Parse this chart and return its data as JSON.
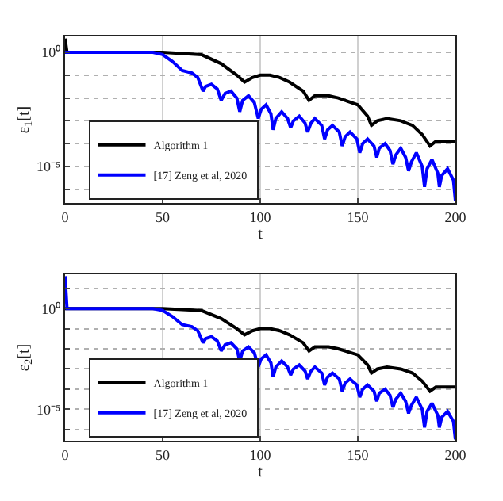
{
  "chart_data": [
    {
      "type": "line",
      "xlabel": "t",
      "ylabel": "ε$_{1}$[t]",
      "log": "y",
      "grid": true,
      "legend": "bottom left",
      "line_style": "solid",
      "marker": "none",
      "xlim": [
        0,
        200
      ],
      "xticks": [
        0,
        50,
        100,
        150,
        200
      ],
      "ylim": [
        2.5e-07,
        5
      ],
      "yticks": [
        {
          "value": 1e-06,
          "label": null
        },
        {
          "value": 1e-05,
          "label": "10⁻⁵"
        },
        {
          "value": 0.0001,
          "label": null
        },
        {
          "value": 0.001,
          "label": null
        },
        {
          "value": 0.01,
          "label": null
        },
        {
          "value": 0.1,
          "label": null
        },
        {
          "value": 1,
          "label": "10⁰"
        }
      ],
      "series": [
        {
          "name": "Algorithm 1",
          "color": "#000000",
          "x": [
            0,
            1,
            50,
            70,
            80,
            88,
            92,
            96,
            100,
            105,
            110,
            115,
            122,
            125,
            128,
            135,
            140,
            150,
            155,
            157,
            160,
            165,
            172,
            178,
            183,
            187,
            190,
            200
          ],
          "values": [
            4,
            1,
            1,
            0.79,
            0.32,
            0.1,
            0.05,
            0.079,
            0.1,
            0.1,
            0.079,
            0.05,
            0.02,
            0.0079,
            0.0126,
            0.0126,
            0.01,
            0.005,
            0.0016,
            0.00063,
            0.001,
            0.00126,
            0.001,
            0.00063,
            0.00025,
            7.9e-05,
            0.000126,
            0.000126
          ]
        },
        {
          "name": "[17] Zeng et al, 2020",
          "color": "#0000ff",
          "x": [
            0,
            45,
            50,
            55,
            60,
            65,
            68,
            70.7,
            72,
            75,
            78,
            80,
            82,
            85,
            88,
            89.5,
            91,
            94,
            97,
            99,
            100.5,
            103,
            105.5,
            106.6,
            108,
            111,
            114,
            115.6,
            117,
            120,
            123,
            124.3,
            126,
            128,
            131.5,
            133,
            134.5,
            137,
            140.5,
            142,
            143.5,
            146,
            149.5,
            151,
            152.5,
            155,
            158.3,
            159.7,
            161,
            164,
            166.5,
            168,
            169.5,
            172,
            174.5,
            176,
            177.5,
            180,
            183,
            184.2,
            185.5,
            188,
            191,
            191.8,
            193,
            196,
            199,
            200
          ],
          "values": [
            1,
            1,
            0.8,
            0.4,
            0.16,
            0.126,
            0.079,
            0.02,
            0.032,
            0.04,
            0.025,
            0.0079,
            0.016,
            0.02,
            0.01,
            0.0025,
            0.0079,
            0.0126,
            0.0063,
            0.00126,
            0.0032,
            0.005,
            0.002,
            0.0004,
            0.00126,
            0.0025,
            0.00126,
            0.0005,
            0.001,
            0.0016,
            0.00079,
            0.00032,
            0.00079,
            0.00126,
            0.00063,
            0.00016,
            0.0004,
            0.00063,
            0.00032,
            7.9e-05,
            0.0002,
            0.00032,
            0.00016,
            4e-05,
            0.0001,
            0.00016,
            7.9e-05,
            2.5e-05,
            6.3e-05,
            0.0001,
            5e-05,
            1.26e-05,
            3.2e-05,
            6.3e-05,
            2.5e-05,
            6.3e-06,
            1.6e-05,
            4e-05,
            1e-05,
            1.26e-06,
            7.9e-06,
            2e-05,
            5e-06,
            1.26e-06,
            4e-06,
            7.9e-06,
            2.5e-06,
            3.2e-07
          ]
        }
      ]
    },
    {
      "type": "line",
      "xlabel": "t",
      "ylabel": "ε$_{2}$[t]",
      "log": "y",
      "grid": true,
      "legend": "bottom left",
      "line_style": "solid",
      "marker": "none",
      "xlim": [
        0,
        200
      ],
      "xticks": [
        0,
        50,
        100,
        150,
        200
      ],
      "ylim": [
        2.75e-07,
        50
      ],
      "yticks": [
        {
          "value": 1e-06,
          "label": null
        },
        {
          "value": 1e-05,
          "label": "10⁻⁵"
        },
        {
          "value": 0.0001,
          "label": null
        },
        {
          "value": 0.001,
          "label": null
        },
        {
          "value": 0.01,
          "label": null
        },
        {
          "value": 0.1,
          "label": null
        },
        {
          "value": 1,
          "label": "10⁰"
        },
        {
          "value": 10,
          "label": null
        }
      ],
      "series": [
        {
          "name": "Algorithm 1",
          "color": "#000000",
          "x": [
            0,
            1,
            50,
            70,
            80,
            88,
            92,
            96,
            100,
            105,
            110,
            115,
            122,
            125,
            128,
            135,
            140,
            150,
            155,
            157,
            160,
            165,
            172,
            178,
            183,
            187,
            190,
            200
          ],
          "values": [
            1,
            1,
            1,
            0.79,
            0.32,
            0.1,
            0.05,
            0.079,
            0.1,
            0.1,
            0.079,
            0.05,
            0.02,
            0.0079,
            0.0126,
            0.0126,
            0.01,
            0.005,
            0.0016,
            0.00063,
            0.001,
            0.00126,
            0.001,
            0.00063,
            0.00025,
            7.9e-05,
            0.000126,
            0.000126
          ]
        },
        {
          "name": "[17] Zeng et al, 2020",
          "color": "#0000ff",
          "x": [
            0,
            1,
            45,
            50,
            55,
            60,
            65,
            68,
            70.7,
            72,
            75,
            78,
            80,
            82,
            85,
            88,
            89.5,
            91,
            94,
            97,
            99,
            100.5,
            103,
            105.5,
            106.6,
            108,
            111,
            114,
            115.6,
            117,
            120,
            123,
            124.3,
            126,
            128,
            131.5,
            133,
            134.5,
            137,
            140.5,
            142,
            143.5,
            146,
            149.5,
            151,
            152.5,
            155,
            158.3,
            159.7,
            161,
            164,
            166.5,
            168,
            169.5,
            172,
            174.5,
            176,
            177.5,
            180,
            183,
            184.2,
            185.5,
            188,
            191,
            191.8,
            193,
            196,
            199,
            200
          ],
          "values": [
            40,
            1,
            1,
            0.8,
            0.4,
            0.16,
            0.126,
            0.079,
            0.02,
            0.032,
            0.04,
            0.025,
            0.0079,
            0.016,
            0.02,
            0.01,
            0.0025,
            0.0079,
            0.0126,
            0.0063,
            0.00126,
            0.0032,
            0.005,
            0.002,
            0.0004,
            0.00126,
            0.0025,
            0.00126,
            0.0005,
            0.001,
            0.0016,
            0.00079,
            0.00032,
            0.00079,
            0.00126,
            0.00063,
            0.00016,
            0.0004,
            0.00063,
            0.00032,
            7.9e-05,
            0.0002,
            0.00032,
            0.00016,
            4e-05,
            0.0001,
            0.00016,
            7.9e-05,
            2.5e-05,
            6.3e-05,
            0.0001,
            5e-05,
            1.26e-05,
            3.2e-05,
            6.3e-05,
            2.5e-05,
            6.3e-06,
            1.6e-05,
            4e-05,
            1e-05,
            1.26e-06,
            7.9e-06,
            2e-05,
            5e-06,
            1.26e-06,
            4e-06,
            7.9e-06,
            2.5e-06,
            3.2e-07
          ]
        }
      ]
    }
  ]
}
